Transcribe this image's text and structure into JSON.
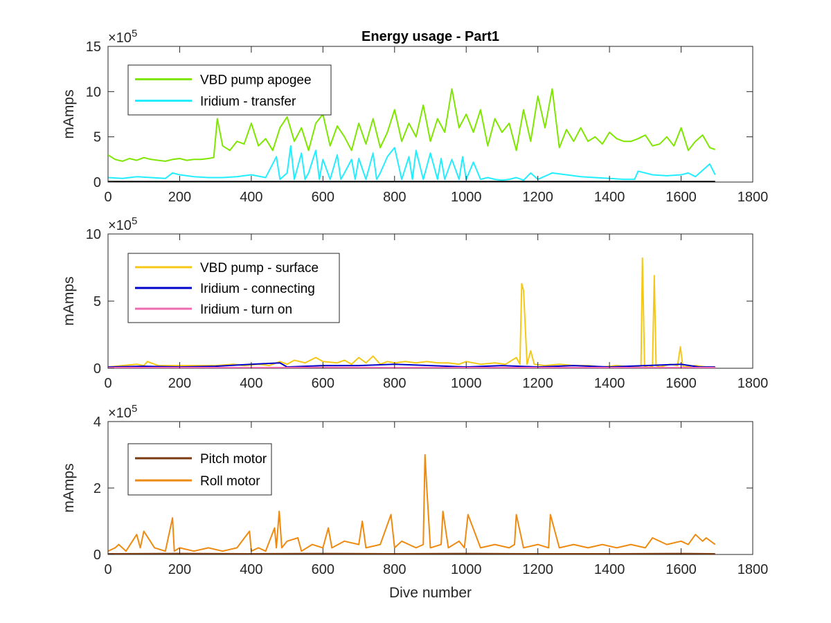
{
  "chart_data": [
    {
      "type": "line",
      "title": "Energy usage - Part1",
      "xlabel": "",
      "ylabel": "mAmps",
      "exponent_label": "×10",
      "exponent_power": "5",
      "xlim": [
        0,
        1800
      ],
      "ylim": [
        0,
        15
      ],
      "y_scale_factor": 100000,
      "xticks": [
        "0",
        "200",
        "400",
        "600",
        "800",
        "1000",
        "1200",
        "1400",
        "1600",
        "1800"
      ],
      "yticks": [
        "0",
        "5",
        "10",
        "15"
      ],
      "legend_position": "top-left",
      "grid": false,
      "series": [
        {
          "name": "VBD pump apogee",
          "color": "#7fe600",
          "x": [
            0,
            20,
            40,
            60,
            80,
            100,
            120,
            140,
            160,
            180,
            200,
            220,
            240,
            260,
            280,
            295,
            305,
            320,
            340,
            360,
            380,
            400,
            420,
            440,
            460,
            480,
            500,
            520,
            540,
            560,
            580,
            600,
            620,
            640,
            660,
            680,
            700,
            720,
            740,
            760,
            780,
            800,
            820,
            840,
            860,
            880,
            900,
            920,
            940,
            960,
            980,
            1000,
            1020,
            1040,
            1060,
            1080,
            1100,
            1120,
            1140,
            1160,
            1180,
            1200,
            1220,
            1240,
            1260,
            1280,
            1300,
            1320,
            1340,
            1360,
            1380,
            1400,
            1420,
            1440,
            1460,
            1480,
            1500,
            1520,
            1540,
            1560,
            1580,
            1600,
            1620,
            1640,
            1660,
            1680,
            1695
          ],
          "values": [
            3.0,
            2.5,
            2.3,
            2.6,
            2.4,
            2.7,
            2.5,
            2.4,
            2.3,
            2.5,
            2.6,
            2.4,
            2.5,
            2.5,
            2.6,
            2.7,
            7.0,
            4.0,
            3.5,
            4.5,
            4.2,
            6.5,
            4.0,
            4.8,
            3.5,
            6.0,
            7.2,
            4.5,
            6.0,
            3.5,
            6.5,
            7.5,
            4.0,
            6.2,
            5.0,
            3.5,
            6.5,
            4.2,
            7.0,
            3.8,
            5.5,
            8.0,
            4.5,
            6.5,
            5.0,
            8.5,
            4.5,
            7.0,
            5.5,
            10.3,
            6.0,
            7.5,
            5.5,
            8.0,
            4.0,
            7.0,
            5.5,
            6.5,
            3.5,
            8.0,
            4.5,
            9.5,
            6.0,
            10.3,
            3.8,
            5.8,
            4.5,
            6.0,
            4.5,
            5.0,
            4.2,
            5.5,
            4.8,
            4.5,
            4.5,
            4.8,
            5.2,
            4.0,
            4.2,
            5.0,
            4.0,
            6.0,
            3.5,
            4.5,
            5.2,
            3.8,
            3.6
          ]
        },
        {
          "name": "Iridium - transfer",
          "color": "#22eeff",
          "x": [
            0,
            40,
            80,
            120,
            160,
            180,
            200,
            240,
            280,
            320,
            360,
            400,
            440,
            470,
            480,
            500,
            510,
            520,
            540,
            550,
            560,
            580,
            590,
            600,
            620,
            640,
            650,
            660,
            680,
            690,
            700,
            720,
            740,
            750,
            760,
            780,
            800,
            820,
            840,
            850,
            860,
            880,
            900,
            920,
            930,
            940,
            960,
            980,
            990,
            1000,
            1020,
            1040,
            1060,
            1080,
            1100,
            1120,
            1140,
            1160,
            1180,
            1200,
            1240,
            1280,
            1320,
            1360,
            1400,
            1440,
            1470,
            1480,
            1520,
            1560,
            1600,
            1620,
            1640,
            1680,
            1695
          ],
          "values": [
            0.5,
            0.4,
            0.6,
            0.5,
            0.4,
            1.0,
            0.8,
            0.6,
            0.5,
            0.5,
            0.6,
            0.8,
            0.5,
            2.8,
            0.3,
            1.0,
            4.0,
            0.3,
            3.2,
            0.3,
            1.0,
            3.5,
            0.3,
            2.5,
            0.3,
            3.0,
            0.3,
            1.0,
            2.5,
            0.3,
            2.6,
            0.3,
            3.2,
            0.3,
            1.0,
            2.8,
            3.8,
            0.3,
            2.8,
            0.3,
            3.5,
            0.3,
            3.2,
            0.3,
            2.6,
            0.3,
            2.5,
            0.3,
            2.8,
            0.3,
            2.2,
            0.3,
            0.5,
            0.3,
            0.2,
            0.3,
            0.5,
            0.2,
            1.0,
            0.3,
            1.0,
            0.8,
            0.6,
            0.5,
            0.4,
            0.3,
            0.3,
            1.2,
            0.8,
            0.7,
            0.8,
            1.0,
            0.6,
            2.0,
            0.8
          ]
        },
        {
          "name": "",
          "color": "#000000",
          "x": [
            0,
            400,
            800,
            1200,
            1600,
            1695
          ],
          "values": [
            0.05,
            0.05,
            0.05,
            0.05,
            0.05,
            0.05
          ]
        }
      ]
    },
    {
      "type": "line",
      "title": "",
      "xlabel": "",
      "ylabel": "mAmps",
      "exponent_label": "×10",
      "exponent_power": "5",
      "xlim": [
        0,
        1800
      ],
      "ylim": [
        0,
        10
      ],
      "y_scale_factor": 100000,
      "xticks": [
        "0",
        "200",
        "400",
        "600",
        "800",
        "1000",
        "1200",
        "1400",
        "1600",
        "1800"
      ],
      "yticks": [
        "0",
        "5",
        "10"
      ],
      "legend_position": "top-left",
      "grid": false,
      "series": [
        {
          "name": "VBD pump - surface",
          "color": "#f5c816",
          "x": [
            0,
            40,
            80,
            100,
            110,
            140,
            200,
            260,
            300,
            350,
            380,
            420,
            450,
            480,
            500,
            520,
            550,
            580,
            600,
            640,
            660,
            680,
            700,
            720,
            740,
            760,
            780,
            800,
            830,
            860,
            890,
            920,
            950,
            980,
            1000,
            1040,
            1080,
            1110,
            1140,
            1150,
            1155,
            1160,
            1170,
            1180,
            1190,
            1220,
            1260,
            1300,
            1340,
            1380,
            1420,
            1460,
            1480,
            1488,
            1492,
            1498,
            1510,
            1520,
            1525,
            1530,
            1540,
            1570,
            1590,
            1598,
            1605,
            1640,
            1670,
            1695
          ],
          "values": [
            0.1,
            0.2,
            0.3,
            0.2,
            0.5,
            0.2,
            0.2,
            0.2,
            0.2,
            0.3,
            0.2,
            0.3,
            0.2,
            0.5,
            0.3,
            0.6,
            0.4,
            0.8,
            0.5,
            0.4,
            0.6,
            0.3,
            0.8,
            0.4,
            0.9,
            0.3,
            0.5,
            0.4,
            0.5,
            0.4,
            0.5,
            0.4,
            0.4,
            0.3,
            0.5,
            0.3,
            0.4,
            0.3,
            0.8,
            0.3,
            6.3,
            5.8,
            0.3,
            1.3,
            0.3,
            0.2,
            0.3,
            0.2,
            0.2,
            0.1,
            0.2,
            0.1,
            0.1,
            0.2,
            8.2,
            0.1,
            0.2,
            0.1,
            6.9,
            0.2,
            0.1,
            0.3,
            0.2,
            1.6,
            0.1,
            0.2,
            0.1,
            0.1
          ]
        },
        {
          "name": "Iridium - connecting",
          "color": "#0000cc",
          "x": [
            0,
            100,
            200,
            300,
            400,
            480,
            500,
            600,
            700,
            800,
            900,
            1000,
            1100,
            1200,
            1300,
            1400,
            1500,
            1600,
            1650,
            1695
          ],
          "values": [
            0.1,
            0.15,
            0.1,
            0.15,
            0.3,
            0.4,
            0.1,
            0.2,
            0.2,
            0.3,
            0.2,
            0.1,
            0.2,
            0.1,
            0.2,
            0.1,
            0.2,
            0.3,
            0.1,
            0.1
          ]
        },
        {
          "name": "Iridium - turn on",
          "color": "#f06ab0",
          "x": [
            0,
            200,
            400,
            600,
            800,
            1000,
            1200,
            1400,
            1600,
            1695
          ],
          "values": [
            0.05,
            0.05,
            0.05,
            0.06,
            0.05,
            0.05,
            0.05,
            0.05,
            0.05,
            0.05
          ]
        }
      ]
    },
    {
      "type": "line",
      "title": "",
      "xlabel": "Dive number",
      "ylabel": "mAmps",
      "exponent_label": "×10",
      "exponent_power": "5",
      "xlim": [
        0,
        1800
      ],
      "ylim": [
        0,
        4
      ],
      "y_scale_factor": 100000,
      "xticks": [
        "0",
        "200",
        "400",
        "600",
        "800",
        "1000",
        "1200",
        "1400",
        "1600",
        "1800"
      ],
      "yticks": [
        "0",
        "2",
        "4"
      ],
      "legend_position": "top-left",
      "grid": false,
      "series": [
        {
          "name": "Pitch motor",
          "color": "#7a3a10",
          "x": [
            0,
            200,
            400,
            600,
            800,
            1000,
            1200,
            1400,
            1600,
            1695
          ],
          "values": [
            0.02,
            0.03,
            0.02,
            0.03,
            0.02,
            0.03,
            0.02,
            0.02,
            0.03,
            0.02
          ]
        },
        {
          "name": "Roll motor",
          "color": "#ee8a10",
          "x": [
            0,
            20,
            30,
            50,
            80,
            90,
            100,
            130,
            160,
            180,
            185,
            200,
            240,
            280,
            320,
            360,
            395,
            400,
            420,
            440,
            465,
            470,
            478,
            485,
            500,
            530,
            540,
            570,
            600,
            615,
            625,
            660,
            700,
            710,
            720,
            760,
            790,
            800,
            820,
            860,
            880,
            885,
            890,
            900,
            930,
            935,
            950,
            980,
            995,
            1005,
            1040,
            1080,
            1120,
            1135,
            1140,
            1160,
            1200,
            1230,
            1235,
            1260,
            1300,
            1340,
            1380,
            1420,
            1460,
            1500,
            1520,
            1560,
            1600,
            1620,
            1640,
            1660,
            1670,
            1695
          ],
          "values": [
            0.1,
            0.2,
            0.3,
            0.1,
            0.6,
            0.2,
            0.7,
            0.2,
            0.1,
            1.1,
            0.1,
            0.2,
            0.1,
            0.2,
            0.1,
            0.2,
            0.7,
            0.1,
            0.2,
            0.1,
            0.8,
            0.2,
            1.3,
            0.2,
            0.4,
            0.5,
            0.1,
            0.3,
            0.2,
            0.8,
            0.2,
            0.4,
            0.3,
            1.0,
            0.2,
            0.3,
            1.2,
            0.2,
            0.4,
            0.2,
            0.3,
            3.0,
            2.0,
            0.2,
            0.3,
            1.3,
            0.2,
            0.4,
            0.2,
            1.2,
            0.2,
            0.3,
            0.2,
            0.3,
            1.2,
            0.2,
            0.3,
            0.2,
            1.2,
            0.2,
            0.3,
            0.2,
            0.3,
            0.2,
            0.3,
            0.2,
            0.5,
            0.3,
            0.4,
            0.3,
            0.6,
            0.4,
            0.5,
            0.3
          ]
        }
      ]
    }
  ]
}
